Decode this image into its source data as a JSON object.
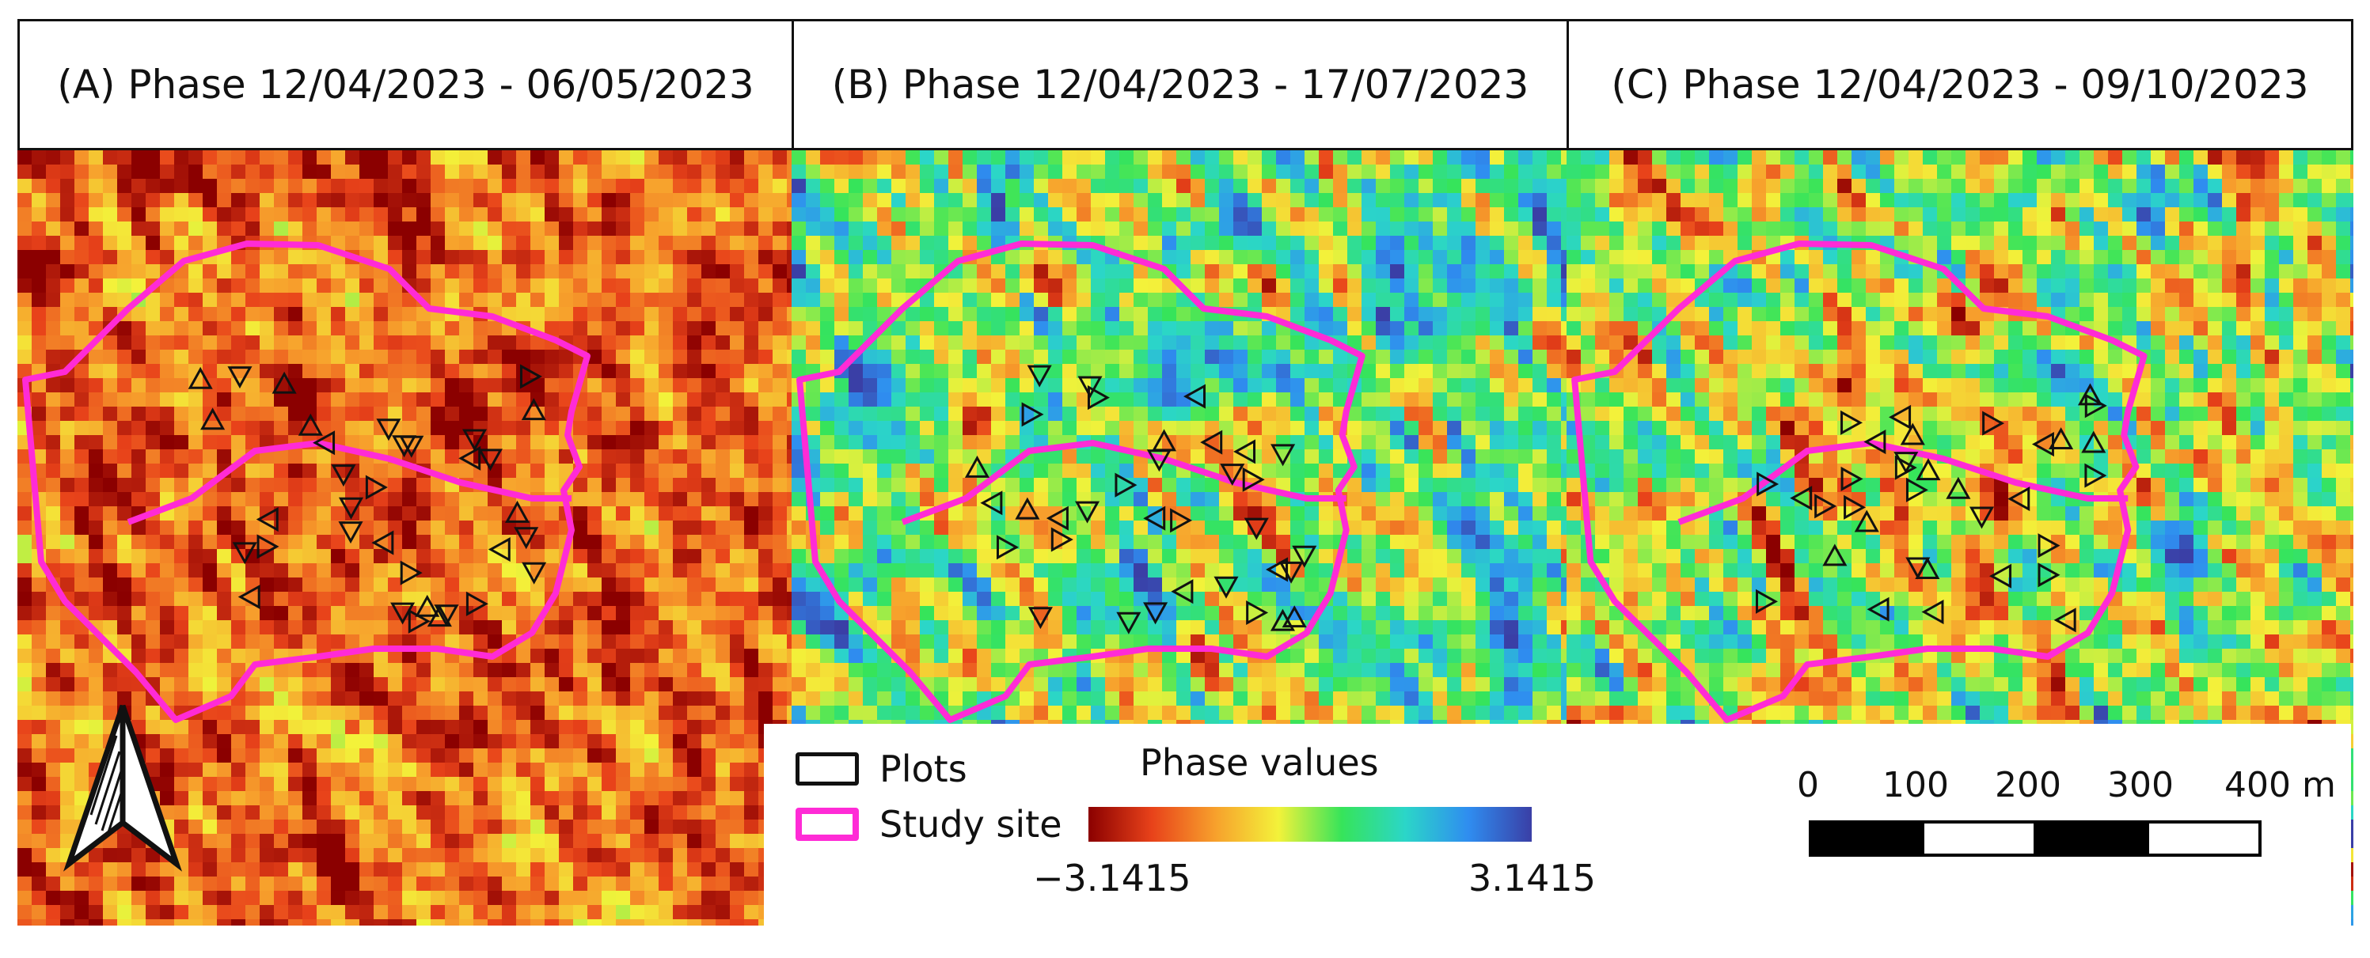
{
  "panels": [
    {
      "id": "A",
      "title": "(A) Phase 12/04/2023 - 06/05/2023",
      "seed": 11,
      "bias": -0.62,
      "spread": 0.28
    },
    {
      "id": "B",
      "title": "(B) Phase 12/04/2023 - 17/07/2023",
      "seed": 37,
      "bias": 0.12,
      "spread": 0.62
    },
    {
      "id": "C",
      "title": "(C) Phase 12/04/2023 - 09/10/2023",
      "seed": 73,
      "bias": -0.05,
      "spread": 0.64
    }
  ],
  "legend": {
    "plots_label": "Plots",
    "study_site_label": "Study site",
    "ramp_title": "Phase values",
    "ramp_min": "−3.1415",
    "ramp_max": "3.1415",
    "ramp_colors": [
      "#8b0000",
      "#e8421a",
      "#f7a02c",
      "#f3f23a",
      "#36e45a",
      "#2bd6c8",
      "#2f8df0",
      "#3a3fa6"
    ],
    "plots_color": "#111111",
    "study_site_color": "#ff2bd6"
  },
  "scalebar": {
    "ticks": [
      "0",
      "100",
      "200",
      "300",
      "400 m"
    ]
  },
  "north_arrow": {
    "icon": "north-arrow-icon"
  }
}
